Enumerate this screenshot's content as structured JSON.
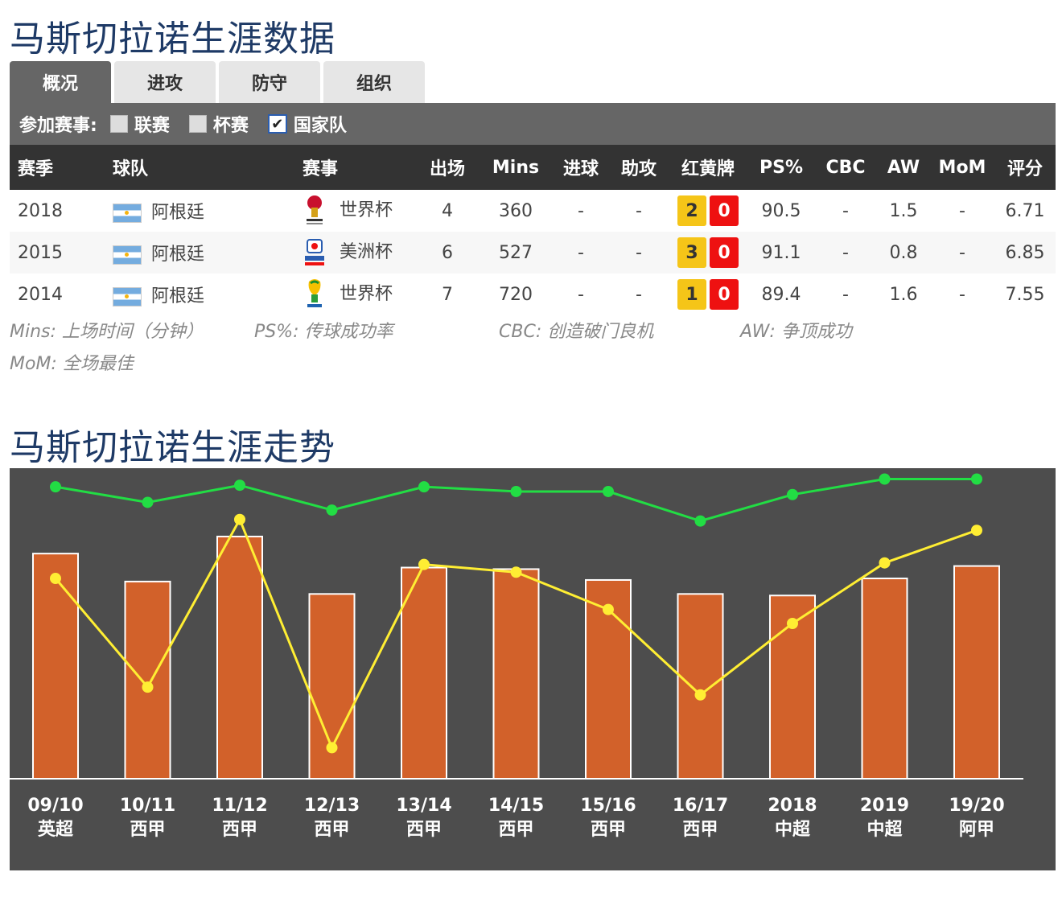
{
  "titles": {
    "career_data": "马斯切拉诺生涯数据",
    "career_trend": "马斯切拉诺生涯走势"
  },
  "tabs": [
    "概况",
    "进攻",
    "防守",
    "组织"
  ],
  "active_tab": "概况",
  "filter": {
    "label": "参加赛事:",
    "options": [
      {
        "label": "联赛",
        "checked": false
      },
      {
        "label": "杯赛",
        "checked": false
      },
      {
        "label": "国家队",
        "checked": true
      }
    ]
  },
  "table": {
    "headers": [
      "赛季",
      "球队",
      "赛事",
      "出场",
      "Mins",
      "进球",
      "助攻",
      "红黄牌",
      "PS%",
      "CBC",
      "AW",
      "MoM",
      "评分"
    ],
    "rows": [
      {
        "season": "2018",
        "team": "阿根廷",
        "competition": "世界杯",
        "apps": "4",
        "mins": "360",
        "goals": "-",
        "assists": "-",
        "yellow": "2",
        "red": "0",
        "ps": "90.5",
        "cbc": "-",
        "aw": "1.5",
        "mom": "-",
        "rating": "6.71"
      },
      {
        "season": "2015",
        "team": "阿根廷",
        "competition": "美洲杯",
        "apps": "6",
        "mins": "527",
        "goals": "-",
        "assists": "-",
        "yellow": "3",
        "red": "0",
        "ps": "91.1",
        "cbc": "-",
        "aw": "0.8",
        "mom": "-",
        "rating": "6.85"
      },
      {
        "season": "2014",
        "team": "阿根廷",
        "competition": "世界杯",
        "apps": "7",
        "mins": "720",
        "goals": "-",
        "assists": "-",
        "yellow": "1",
        "red": "0",
        "ps": "89.4",
        "cbc": "-",
        "aw": "1.6",
        "mom": "-",
        "rating": "7.55"
      }
    ]
  },
  "notes": {
    "mins": "Mins: 上场时间（分钟）",
    "ps": "PS%: 传球成功率",
    "cbc": "CBC: 创造破门良机",
    "aw": "AW:  争顶成功",
    "mom": "MoM: 全场最佳"
  },
  "colors": {
    "title": "#1e3a66",
    "bar": "#d2612a",
    "green_line": "#22dd44",
    "yellow_line": "#ffee33",
    "chart_bg": "#4d4d4d",
    "rating": "#e05a14"
  },
  "chart_data": {
    "type": "bar",
    "categories": [
      {
        "season": "09/10",
        "league": "英超"
      },
      {
        "season": "10/11",
        "league": "西甲"
      },
      {
        "season": "11/12",
        "league": "西甲"
      },
      {
        "season": "12/13",
        "league": "西甲"
      },
      {
        "season": "13/14",
        "league": "西甲"
      },
      {
        "season": "14/15",
        "league": "西甲"
      },
      {
        "season": "15/16",
        "league": "西甲"
      },
      {
        "season": "16/17",
        "league": "西甲"
      },
      {
        "season": "2018",
        "league": "中超"
      },
      {
        "season": "2019",
        "league": "中超"
      },
      {
        "season": "19/20",
        "league": "阿甲"
      }
    ],
    "series": [
      {
        "type": "bar",
        "values": [
          0.725,
          0.635,
          0.78,
          0.595,
          0.68,
          0.675,
          0.64,
          0.595,
          0.59,
          0.645,
          0.685
        ]
      },
      {
        "type": "line",
        "values": [
          0.94,
          0.89,
          0.945,
          0.865,
          0.94,
          0.925,
          0.925,
          0.83,
          0.915,
          0.965,
          0.965
        ]
      },
      {
        "type": "line",
        "values": [
          0.645,
          0.295,
          0.835,
          0.1,
          0.69,
          0.665,
          0.545,
          0.27,
          0.5,
          0.695,
          0.8
        ]
      }
    ],
    "ylim": [
      0,
      1
    ],
    "grid": false,
    "legend": "none"
  }
}
